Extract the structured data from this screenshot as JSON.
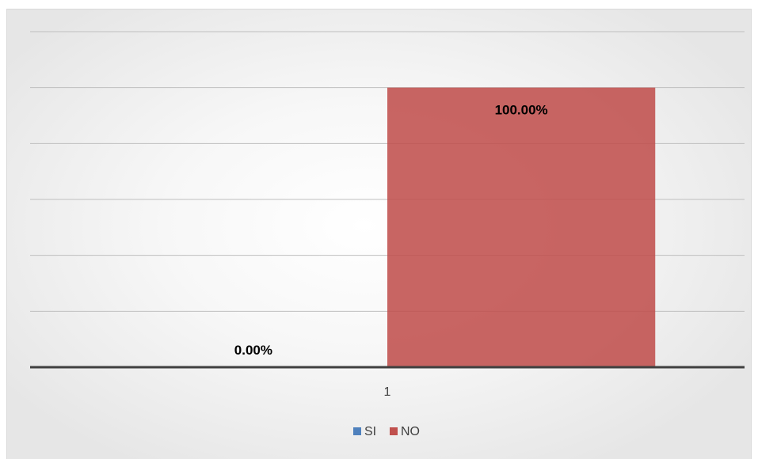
{
  "chart_data": {
    "type": "bar",
    "categories": [
      "1"
    ],
    "series": [
      {
        "name": "SI",
        "values": [
          0.0
        ],
        "label": "0.00%",
        "color": "#4f81bd"
      },
      {
        "name": "NO",
        "values": [
          1.0
        ],
        "label": "100.00%",
        "color": "#c0504d"
      }
    ],
    "ylim": [
      0,
      1.2
    ],
    "grid": true,
    "legend": "bottom"
  }
}
